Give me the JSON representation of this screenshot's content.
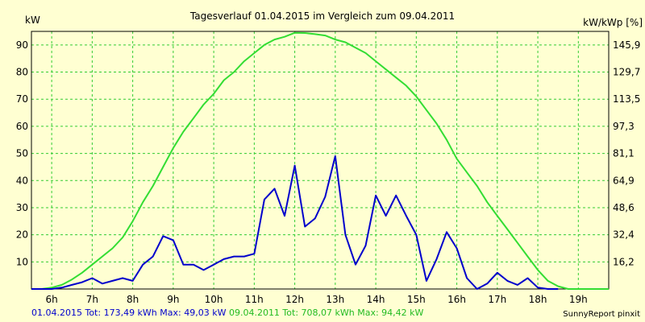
{
  "chart_data": {
    "type": "line",
    "title": "Tagesverlauf 01.04.2015 im Vergleich zum 09.04.2011",
    "ylabel": "kW",
    "y2label": "kW/kWp [%]",
    "ylim": [
      0,
      95
    ],
    "yticks": [
      10,
      20,
      30,
      40,
      50,
      60,
      70,
      80,
      90
    ],
    "y2ticks": [
      "16,2",
      "32,4",
      "48,6",
      "64,9",
      "81,1",
      "97,3",
      "113,5",
      "129,7",
      "145,9"
    ],
    "xlim": [
      5.5,
      19.75
    ],
    "xticks": [
      6,
      7,
      8,
      9,
      10,
      11,
      12,
      13,
      14,
      15,
      16,
      17,
      18,
      19
    ],
    "xtick_labels": [
      "6h",
      "7h",
      "8h",
      "9h",
      "10h",
      "11h",
      "12h",
      "13h",
      "14h",
      "15h",
      "16h",
      "17h",
      "18h",
      "19h"
    ],
    "grid": true,
    "colors": {
      "background": "#ffffd2",
      "grid": "#33cc33",
      "series_2015": "#0000cc",
      "series_2011": "#33dd33"
    },
    "series": [
      {
        "name": "09.04.2011",
        "x": [
          5.5,
          5.75,
          6.0,
          6.25,
          6.5,
          6.75,
          7.0,
          7.25,
          7.5,
          7.75,
          8.0,
          8.25,
          8.5,
          8.75,
          9.0,
          9.25,
          9.5,
          9.75,
          10.0,
          10.25,
          10.5,
          10.75,
          11.0,
          11.25,
          11.5,
          11.75,
          12.0,
          12.25,
          12.5,
          12.75,
          13.0,
          13.25,
          13.5,
          13.75,
          14.0,
          14.25,
          14.5,
          14.75,
          15.0,
          15.25,
          15.5,
          15.75,
          16.0,
          16.25,
          16.5,
          16.75,
          17.0,
          17.25,
          17.5,
          17.75,
          18.0,
          18.25,
          18.5,
          18.75,
          19.0,
          19.25,
          19.5,
          19.75
        ],
        "values": [
          0,
          0,
          0.5,
          1.5,
          3.5,
          6,
          9,
          12,
          15,
          19,
          25,
          32,
          38,
          45,
          52,
          58,
          63,
          68,
          72,
          77,
          80,
          84,
          87,
          90,
          92,
          93,
          94.5,
          94.4,
          94,
          93.5,
          92,
          91,
          89,
          87,
          84,
          81,
          78,
          75,
          71,
          66,
          61,
          55,
          48,
          43,
          38,
          32,
          27,
          22,
          17,
          12,
          7,
          3,
          1,
          0,
          0,
          0,
          0,
          0
        ]
      },
      {
        "name": "01.04.2015",
        "x": [
          5.5,
          5.75,
          6.0,
          6.25,
          6.5,
          6.75,
          7.0,
          7.25,
          7.5,
          7.75,
          8.0,
          8.25,
          8.5,
          8.75,
          9.0,
          9.25,
          9.5,
          9.75,
          10.0,
          10.25,
          10.5,
          10.75,
          11.0,
          11.25,
          11.5,
          11.75,
          12.0,
          12.25,
          12.5,
          12.75,
          13.0,
          13.25,
          13.5,
          13.75,
          14.0,
          14.25,
          14.5,
          14.75,
          15.0,
          15.25,
          15.5,
          15.75,
          16.0,
          16.25,
          16.5,
          16.75,
          17.0,
          17.25,
          17.5,
          17.75,
          18.0,
          18.25,
          18.5
        ],
        "values": [
          0,
          0,
          0,
          0.5,
          1.5,
          2.5,
          4,
          2,
          3,
          4,
          3,
          9,
          12,
          19.5,
          18,
          9,
          9,
          7,
          9,
          11,
          12,
          12,
          13,
          33,
          37,
          27,
          45.5,
          23,
          26,
          34,
          49,
          20,
          9,
          16,
          34.5,
          27,
          34.5,
          27,
          20,
          3,
          11,
          21,
          15,
          4,
          0,
          2,
          6,
          3,
          1.5,
          4,
          0.5,
          0,
          0
        ]
      }
    ]
  },
  "footer": {
    "series_2015_text": "01.04.2015 Tot: 173,49 kWh Max: 49,03 kW",
    "series_2011_text": "09.04.2011 Tot: 708,07 kWh Max: 94,42 kW",
    "credit": "SunnyReport pinxit"
  }
}
